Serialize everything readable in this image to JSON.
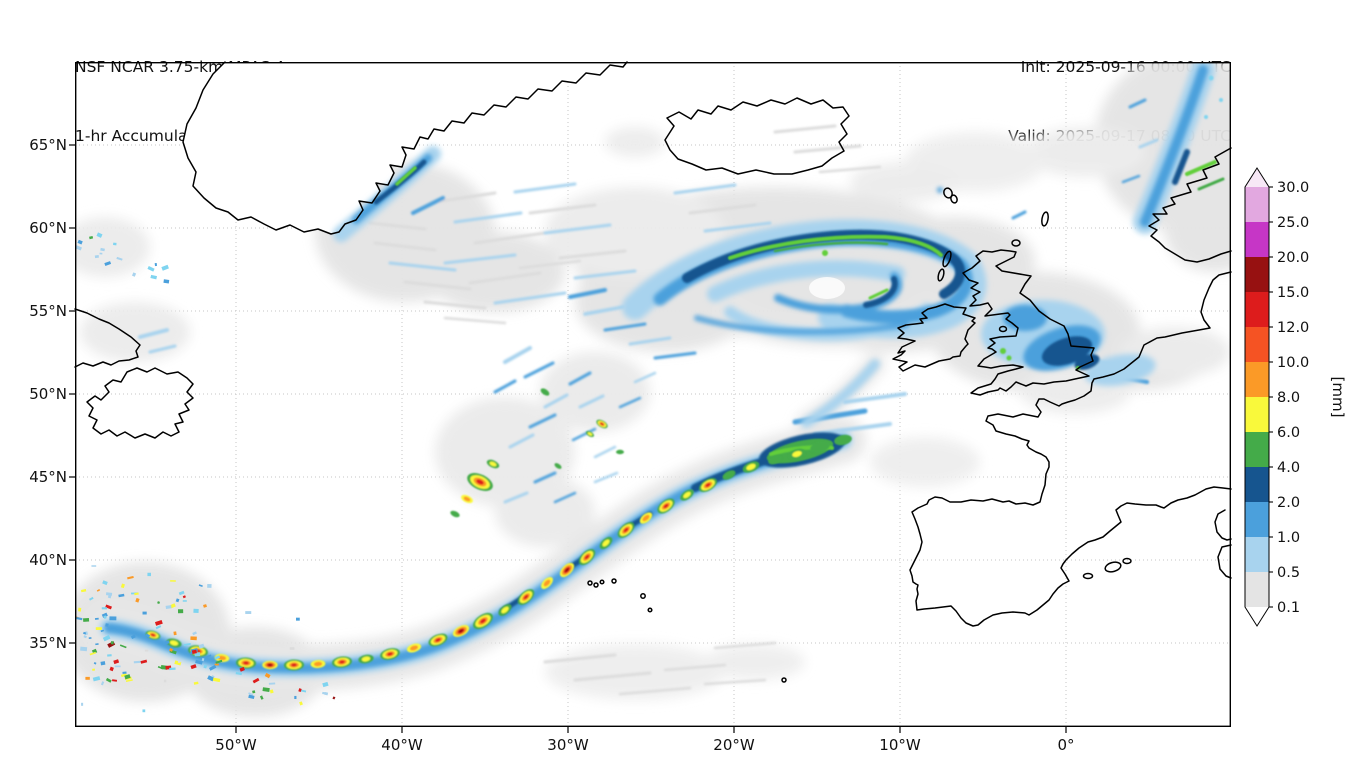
{
  "header": {
    "title_line1": "NSF NCAR 3.75-km MPAS-A",
    "title_line2": "1-hr Accumulated Precipitation (mm)",
    "init_line": "Init: 2025-09-16 00:00 UTC",
    "valid_line": "Valid: 2025-09-17 08:00 UTC"
  },
  "axes": {
    "y_tick_labels": [
      "65°N",
      "60°N",
      "55°N",
      "50°N",
      "45°N",
      "40°N",
      "35°N"
    ],
    "x_tick_labels": [
      "50°W",
      "40°W",
      "30°W",
      "20°W",
      "10°W",
      "0°"
    ]
  },
  "colorbar": {
    "unit": "[mm]",
    "tick_labels": [
      "30.0",
      "25.0",
      "20.0",
      "15.0",
      "12.0",
      "10.0",
      "8.0",
      "6.0",
      "4.0",
      "2.0",
      "1.0",
      "0.5",
      "0.1"
    ],
    "segment_colors": [
      "#e2a8e0",
      "#c636c6",
      "#971111",
      "#dd1c1c",
      "#f55323",
      "#fb9a27",
      "#f9f93b",
      "#44ab49",
      "#16558f",
      "#4ba0dc",
      "#a8d3ee",
      "#e4e4e4"
    ],
    "over_arrow_color": "#f7e8f6",
    "under_arrow_color": "#ffffff"
  },
  "palette": {
    "trace_gray": "#e4e4e4",
    "light_blue": "#a8d3ee",
    "blue": "#4ba0dc",
    "dark_blue": "#16558f",
    "green": "#44ab49",
    "bright_green": "#62cf3a",
    "cyan": "#7fd4f0",
    "yellow": "#f9f93b",
    "orange": "#fb9a27",
    "orange_red": "#f55323",
    "red": "#dd1c1c",
    "dark_red": "#971111",
    "magenta": "#c636c6"
  }
}
